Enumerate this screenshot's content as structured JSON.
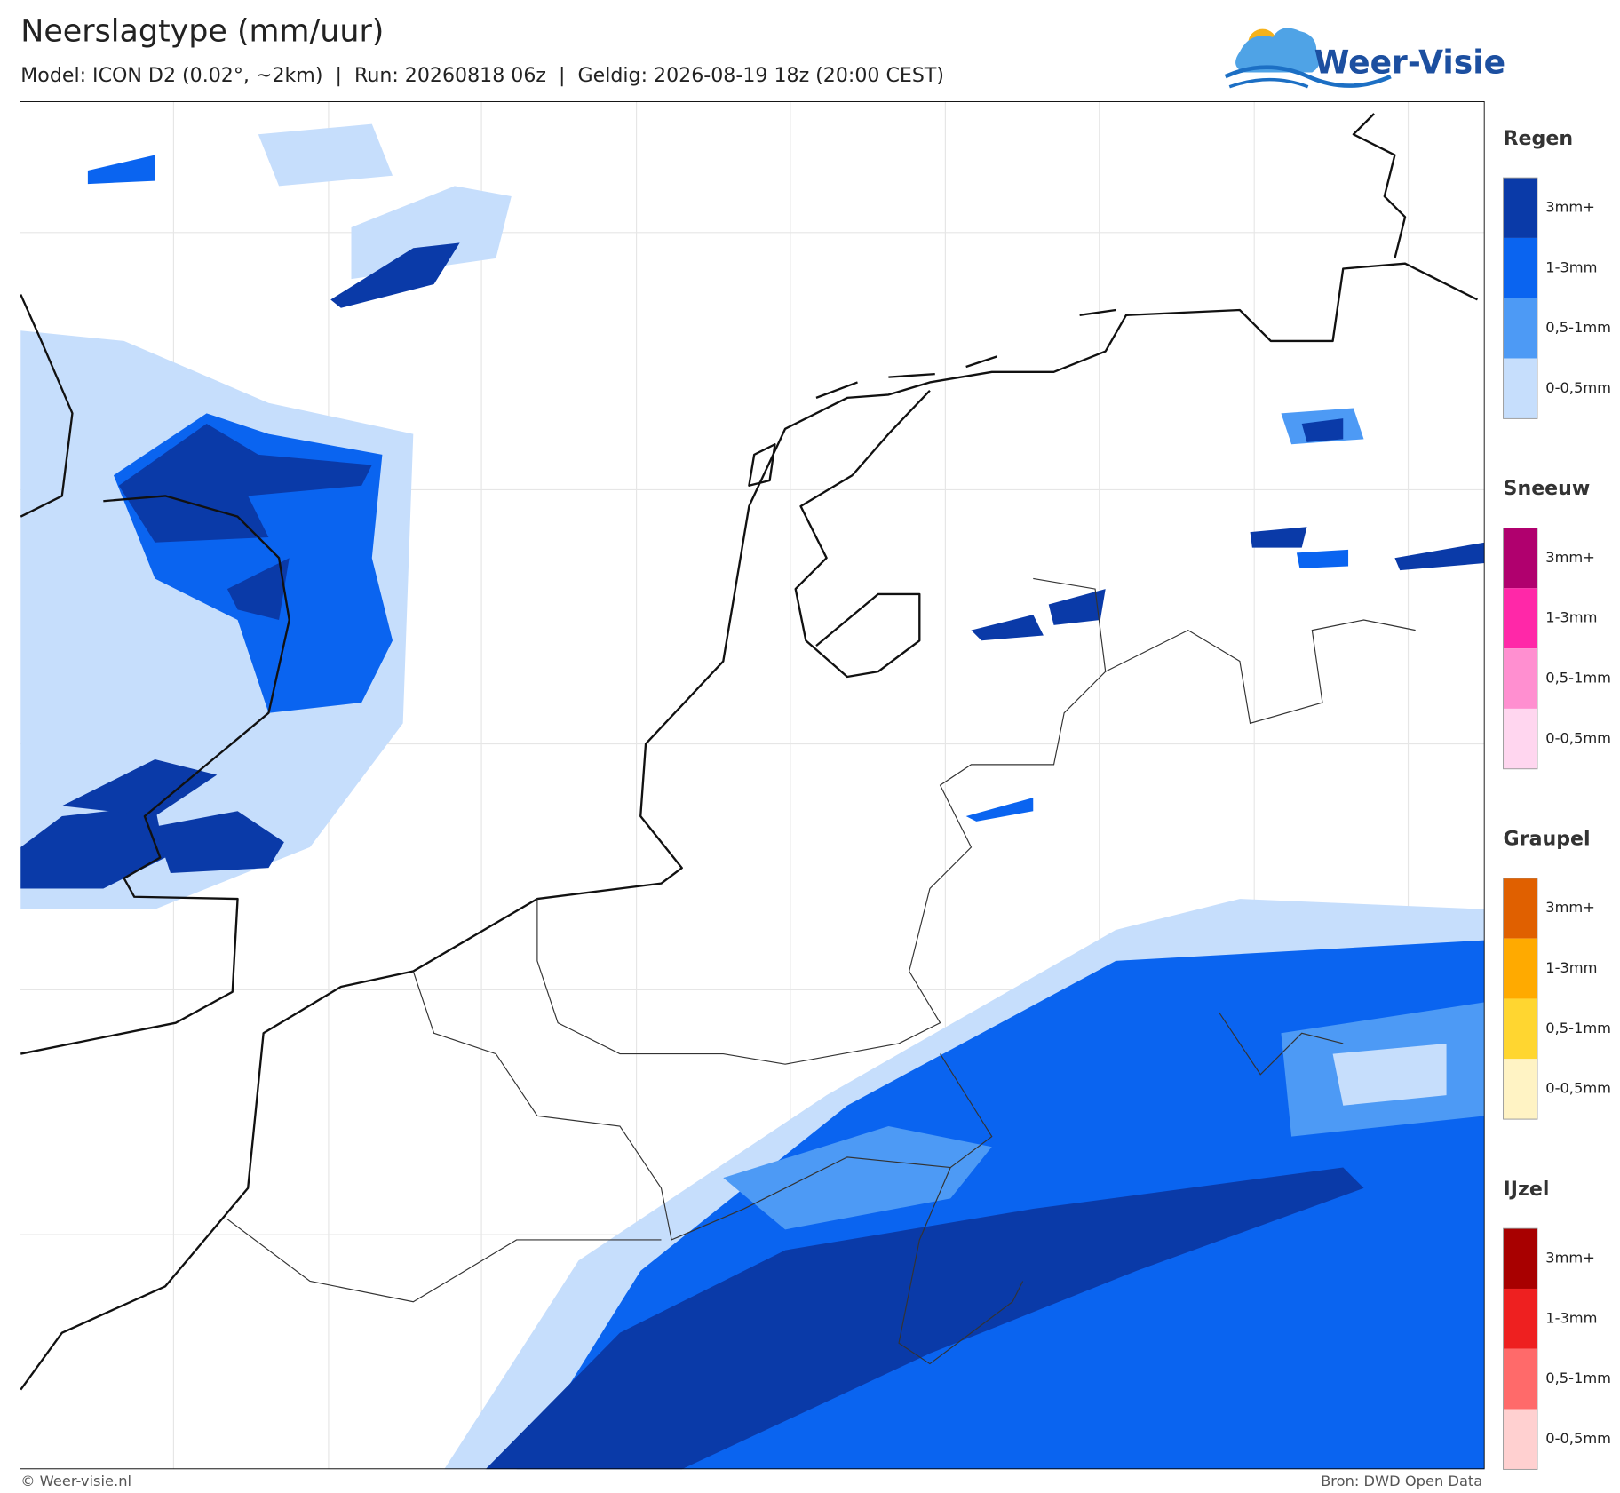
{
  "header": {
    "title": "Neerslagtype (mm/uur)",
    "subtitle": "Model: ICON D2 (0.02°, ~2km)  |  Run: 20260818 06z  |  Geldig: 2026-08-19 18z (20:00 CEST)"
  },
  "logo": {
    "text": "Weer-Visie"
  },
  "legend": [
    {
      "title": "Regen",
      "items": [
        {
          "label": "3mm+",
          "color": "#0a3aa8"
        },
        {
          "label": "1-3mm",
          "color": "#0a64f0"
        },
        {
          "label": "0,5-1mm",
          "color": "#4d9af5"
        },
        {
          "label": "0-0,5mm",
          "color": "#c6defc"
        }
      ]
    },
    {
      "title": "Sneeuw",
      "items": [
        {
          "label": "3mm+",
          "color": "#b0006e"
        },
        {
          "label": "1-3mm",
          "color": "#ff28a8"
        },
        {
          "label": "0,5-1mm",
          "color": "#ff8fd0"
        },
        {
          "label": "0-0,5mm",
          "color": "#ffd6ef"
        }
      ]
    },
    {
      "title": "Graupel",
      "items": [
        {
          "label": "3mm+",
          "color": "#e06000"
        },
        {
          "label": "1-3mm",
          "color": "#ffaa00"
        },
        {
          "label": "0,5-1mm",
          "color": "#ffd630"
        },
        {
          "label": "0-0,5mm",
          "color": "#fff3c4"
        }
      ]
    },
    {
      "title": "IJzel",
      "items": [
        {
          "label": "3mm+",
          "color": "#a80000"
        },
        {
          "label": "1-3mm",
          "color": "#ee2020"
        },
        {
          "label": "0,5-1mm",
          "color": "#ff6a6a"
        },
        {
          "label": "0-0,5mm",
          "color": "#ffd0d0"
        }
      ]
    }
  ],
  "footer": {
    "left": "© Weer-visie.nl",
    "right": "Bron: DWD Open Data"
  }
}
